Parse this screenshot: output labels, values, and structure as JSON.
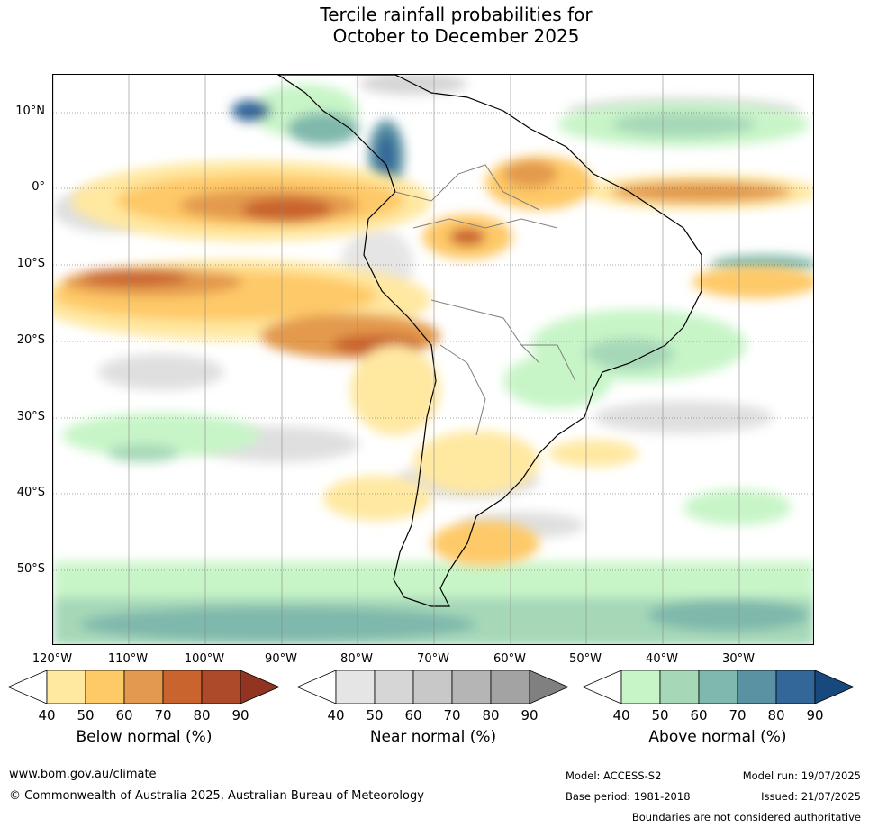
{
  "title_line1": "Tercile rainfall probabilities for",
  "title_line2": "October to December 2025",
  "map": {
    "lat_labels": [
      "10°N",
      "0°",
      "10°S",
      "20°S",
      "30°S",
      "40°S",
      "50°S"
    ],
    "lon_labels": [
      "120°W",
      "110°W",
      "100°W",
      "90°W",
      "80°W",
      "70°W",
      "60°W",
      "50°W",
      "40°W",
      "30°W"
    ]
  },
  "colorbars": {
    "below": {
      "title": "Below normal (%)",
      "ticks": [
        "40",
        "50",
        "60",
        "70",
        "80",
        "90"
      ],
      "colors": [
        "#ffffff",
        "#ffe8a0",
        "#fec967",
        "#e39a4e",
        "#c9642f",
        "#ad4a2a",
        "#913522"
      ]
    },
    "near": {
      "title": "Near normal (%)",
      "ticks": [
        "40",
        "50",
        "60",
        "70",
        "80",
        "90"
      ],
      "colors": [
        "#ffffff",
        "#e5e5e5",
        "#d6d6d6",
        "#c8c8c8",
        "#b5b5b5",
        "#a3a3a3",
        "#808080"
      ]
    },
    "above": {
      "title": "Above normal (%)",
      "ticks": [
        "40",
        "50",
        "60",
        "70",
        "80",
        "90"
      ],
      "colors": [
        "#ffffff",
        "#c8f5c8",
        "#a6d8b8",
        "#7fb8ac",
        "#5a92a3",
        "#336699",
        "#17497f"
      ]
    }
  },
  "footer": {
    "website": "www.bom.gov.au/climate",
    "copyright": "© Commonwealth of Australia 2025, Australian Bureau of Meteorology",
    "model": "Model: ACCESS-S2",
    "model_run": "Model run: 19/07/2025",
    "base_period": "Base period: 1981-2018",
    "issued": "Issued: 21/07/2025",
    "boundaries": "Boundaries are not considered authoritative"
  }
}
